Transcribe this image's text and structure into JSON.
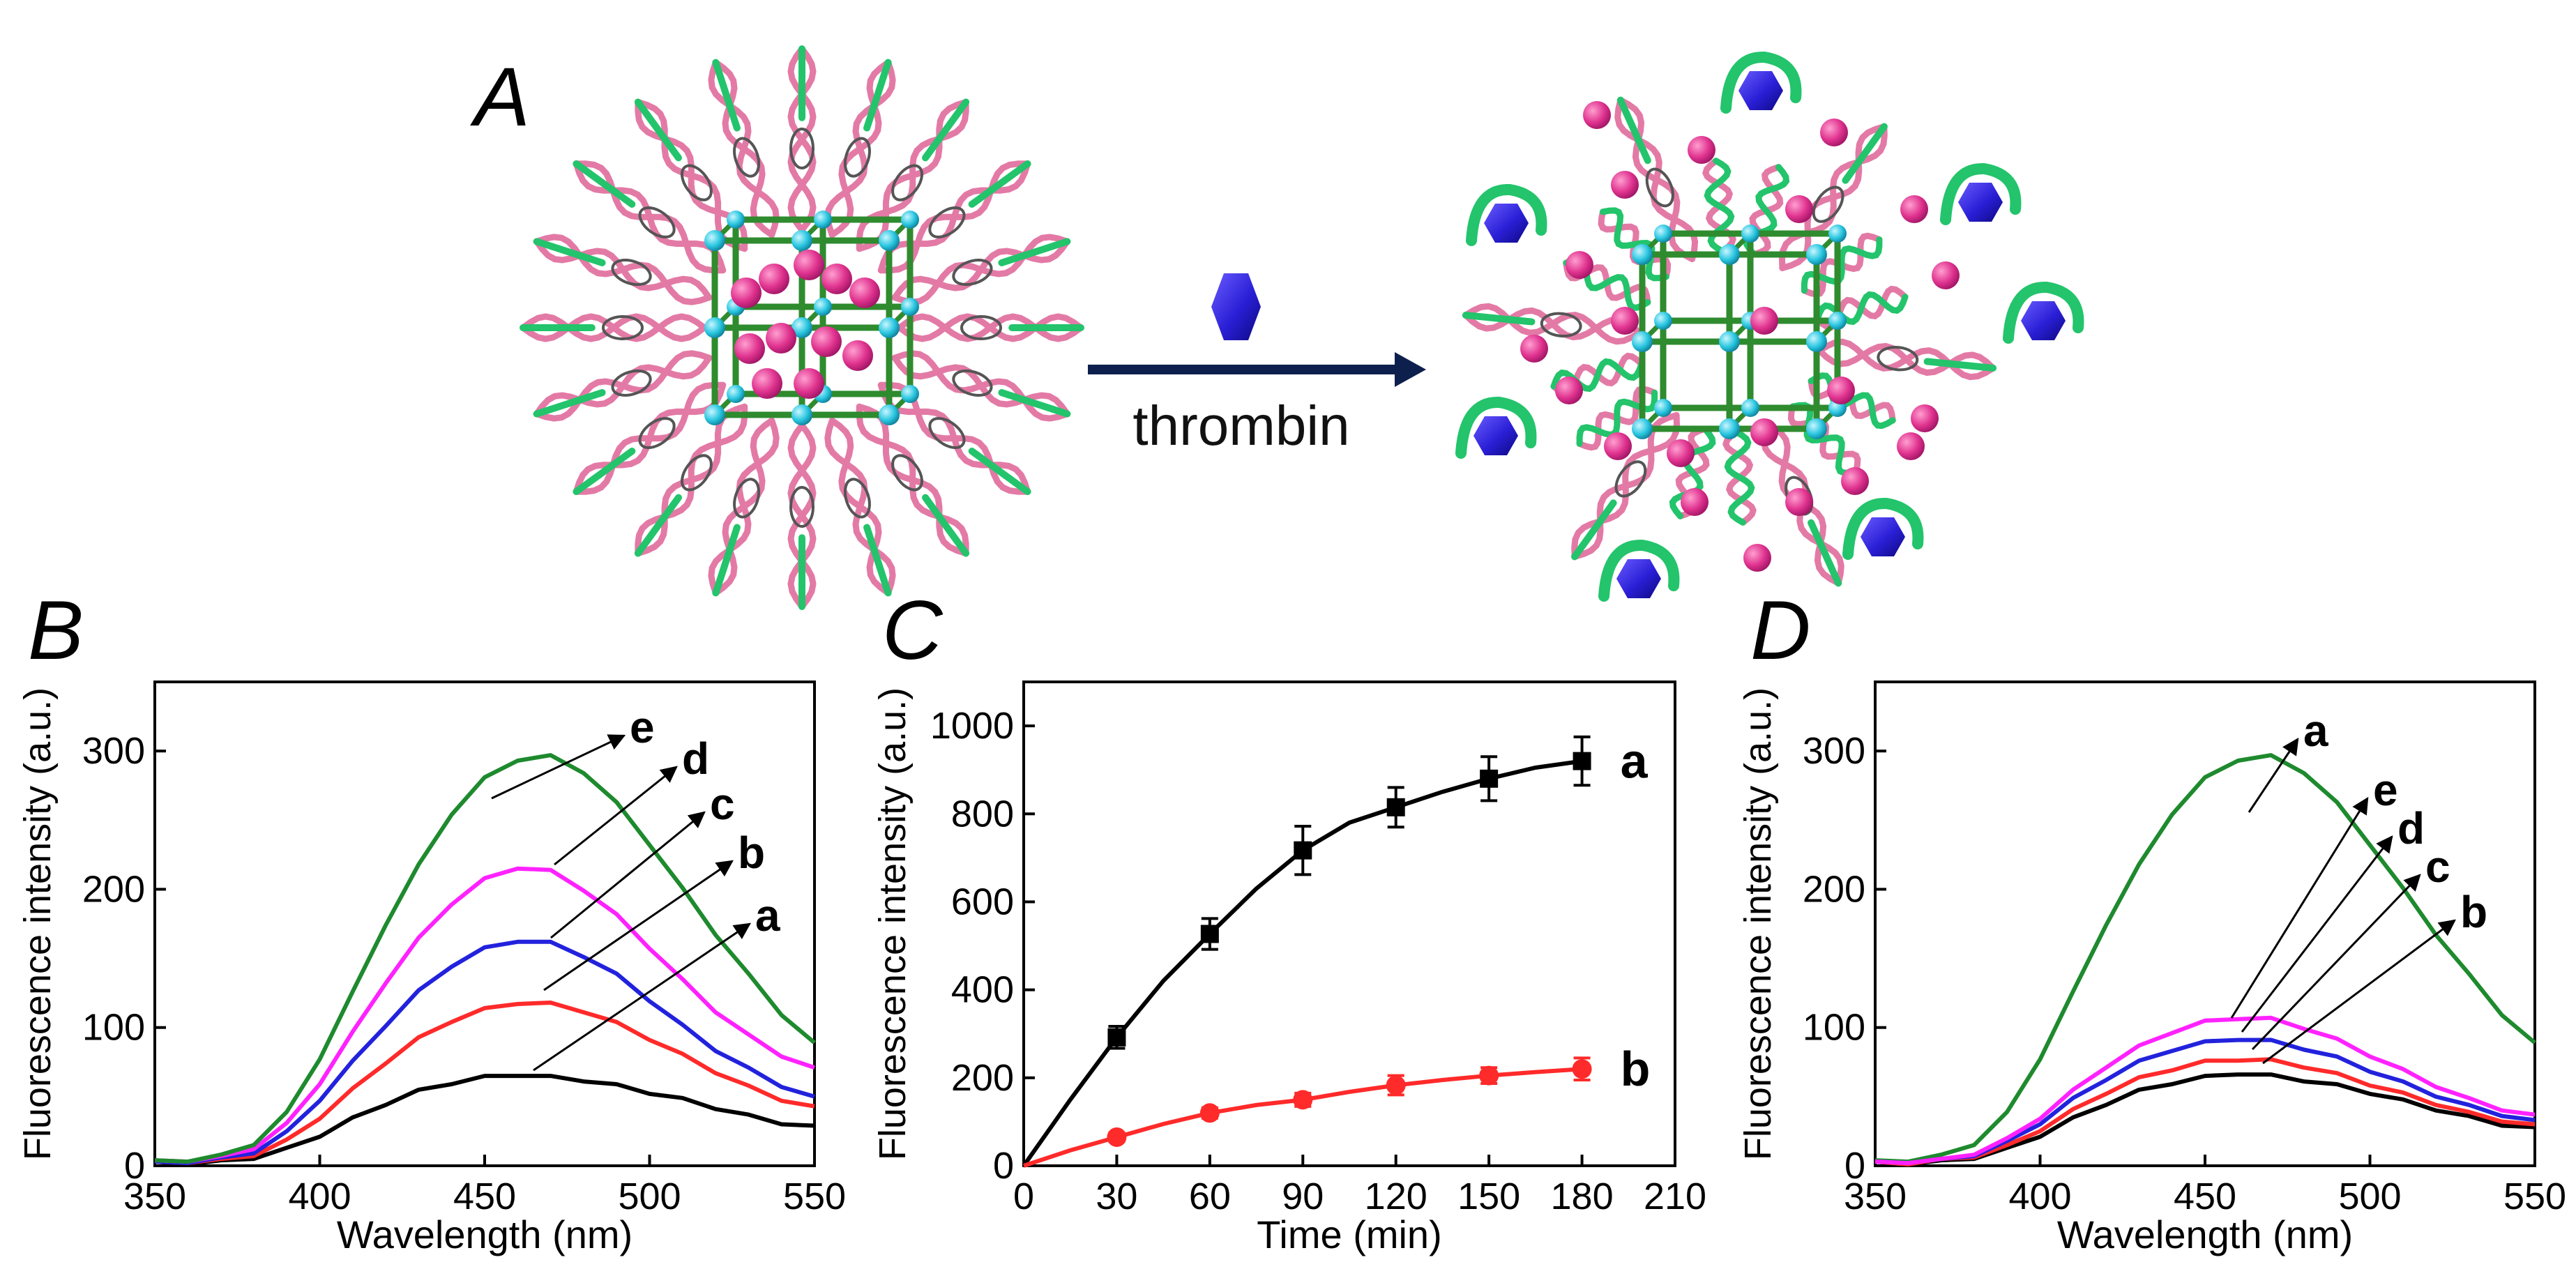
{
  "panel_a": {
    "letter": "A",
    "arrow_label": "thrombin",
    "colors": {
      "arrow": "#0d1f4d",
      "protein": "#2a1fd6",
      "ball": "#e0338f",
      "frame": "#2e8b2e",
      "node": "#29c6e0",
      "strand_green": "#23c46b",
      "strand_pink": "#e37aa6"
    }
  },
  "chart_data": [
    {
      "panel": "B",
      "type": "line",
      "xlabel": "Wavelength (nm)",
      "ylabel": "Fluorescence intensity (a.u.)",
      "xlim": [
        350,
        550
      ],
      "ylim": [
        0,
        350
      ],
      "xticks": [
        350,
        400,
        450,
        500,
        550
      ],
      "yticks": [
        0,
        100,
        200,
        300
      ],
      "x": [
        350,
        360,
        370,
        380,
        390,
        400,
        410,
        420,
        430,
        440,
        450,
        460,
        470,
        480,
        490,
        500,
        510,
        520,
        530,
        540,
        550
      ],
      "series": [
        {
          "name": "a",
          "color": "#000000",
          "values": [
            2,
            2,
            3,
            6,
            12,
            22,
            34,
            45,
            54,
            60,
            64,
            66,
            64,
            62,
            58,
            53,
            48,
            42,
            36,
            31,
            28
          ]
        },
        {
          "name": "b",
          "color": "#ff2a2a",
          "values": [
            2,
            3,
            4,
            8,
            18,
            35,
            55,
            75,
            92,
            105,
            113,
            118,
            117,
            112,
            103,
            92,
            80,
            68,
            57,
            48,
            42
          ]
        },
        {
          "name": "c",
          "color": "#2222dd",
          "values": [
            2,
            3,
            5,
            10,
            24,
            48,
            75,
            102,
            126,
            145,
            157,
            163,
            161,
            152,
            138,
            120,
            101,
            84,
            70,
            58,
            49
          ]
        },
        {
          "name": "d",
          "color": "#ff22ff",
          "values": [
            3,
            4,
            6,
            13,
            30,
            60,
            96,
            133,
            164,
            190,
            207,
            216,
            213,
            200,
            181,
            158,
            134,
            112,
            94,
            80,
            70
          ]
        },
        {
          "name": "e",
          "color": "#1e8a2e",
          "values": [
            3,
            4,
            7,
            16,
            38,
            78,
            125,
            175,
            217,
            255,
            280,
            294,
            296,
            285,
            262,
            233,
            200,
            168,
            138,
            110,
            88
          ]
        }
      ],
      "annotations": [
        "e",
        "d",
        "c",
        "b",
        "a"
      ]
    },
    {
      "panel": "C",
      "type": "scatter",
      "xlabel": "Time (min)",
      "ylabel": "Fluorescence intensity (a.u.)",
      "xlim": [
        0,
        210
      ],
      "ylim": [
        0,
        1100
      ],
      "xticks": [
        0,
        30,
        60,
        90,
        120,
        150,
        180,
        210
      ],
      "yticks": [
        0,
        200,
        400,
        600,
        800,
        1000
      ],
      "x": [
        30,
        60,
        90,
        120,
        150,
        180
      ],
      "series": [
        {
          "name": "a",
          "color": "#000000",
          "marker": "square",
          "values": [
            292,
            527,
            717,
            815,
            880,
            920
          ],
          "errors": [
            25,
            35,
            55,
            45,
            50,
            55
          ],
          "fit": [
            0,
            150,
            292,
            420,
            527,
            630,
            717,
            780,
            815,
            850,
            880,
            905,
            920
          ]
        },
        {
          "name": "b",
          "color": "#ff2a2a",
          "marker": "circle",
          "values": [
            65,
            120,
            150,
            183,
            205,
            220
          ],
          "errors": [
            10,
            12,
            15,
            22,
            18,
            25
          ],
          "fit": [
            0,
            35,
            65,
            95,
            120,
            138,
            150,
            168,
            183,
            195,
            205,
            213,
            220
          ]
        }
      ],
      "fit_x": [
        0,
        15,
        30,
        45,
        60,
        75,
        90,
        105,
        120,
        135,
        150,
        165,
        180
      ],
      "annotations": [
        "a",
        "b"
      ]
    },
    {
      "panel": "D",
      "type": "line",
      "xlabel": "Wavelength (nm)",
      "ylabel": "Fluorescence intensity (a.u.)",
      "xlim": [
        350,
        550
      ],
      "ylim": [
        0,
        350
      ],
      "xticks": [
        350,
        400,
        450,
        500,
        550
      ],
      "yticks": [
        0,
        100,
        200,
        300
      ],
      "x": [
        350,
        360,
        370,
        380,
        390,
        400,
        410,
        420,
        430,
        440,
        450,
        460,
        470,
        480,
        490,
        500,
        510,
        520,
        530,
        540,
        550
      ],
      "series": [
        {
          "name": "a",
          "color": "#1e8a2e",
          "values": [
            3,
            4,
            7,
            16,
            38,
            78,
            125,
            175,
            217,
            255,
            280,
            294,
            296,
            285,
            262,
            233,
            200,
            168,
            138,
            110,
            88
          ]
        },
        {
          "name": "b",
          "color": "#000000",
          "values": [
            2,
            2,
            3,
            6,
            12,
            22,
            34,
            45,
            54,
            60,
            64,
            67,
            65,
            62,
            58,
            53,
            47,
            41,
            35,
            30,
            27
          ]
        },
        {
          "name": "c",
          "color": "#ff2a2a",
          "values": [
            2,
            2,
            4,
            7,
            14,
            26,
            40,
            53,
            63,
            70,
            75,
            77,
            76,
            72,
            66,
            59,
            52,
            45,
            38,
            33,
            29
          ]
        },
        {
          "name": "d",
          "color": "#2222dd",
          "values": [
            2,
            3,
            4,
            8,
            17,
            31,
            48,
            63,
            75,
            84,
            89,
            92,
            90,
            85,
            78,
            69,
            60,
            51,
            43,
            37,
            32
          ]
        },
        {
          "name": "e",
          "color": "#ff22ff",
          "values": [
            2,
            3,
            4,
            9,
            19,
            35,
            54,
            72,
            86,
            97,
            104,
            107,
            106,
            100,
            91,
            80,
            69,
            58,
            48,
            41,
            36
          ]
        }
      ],
      "annotations": [
        "a",
        "e",
        "d",
        "c",
        "b"
      ]
    }
  ]
}
